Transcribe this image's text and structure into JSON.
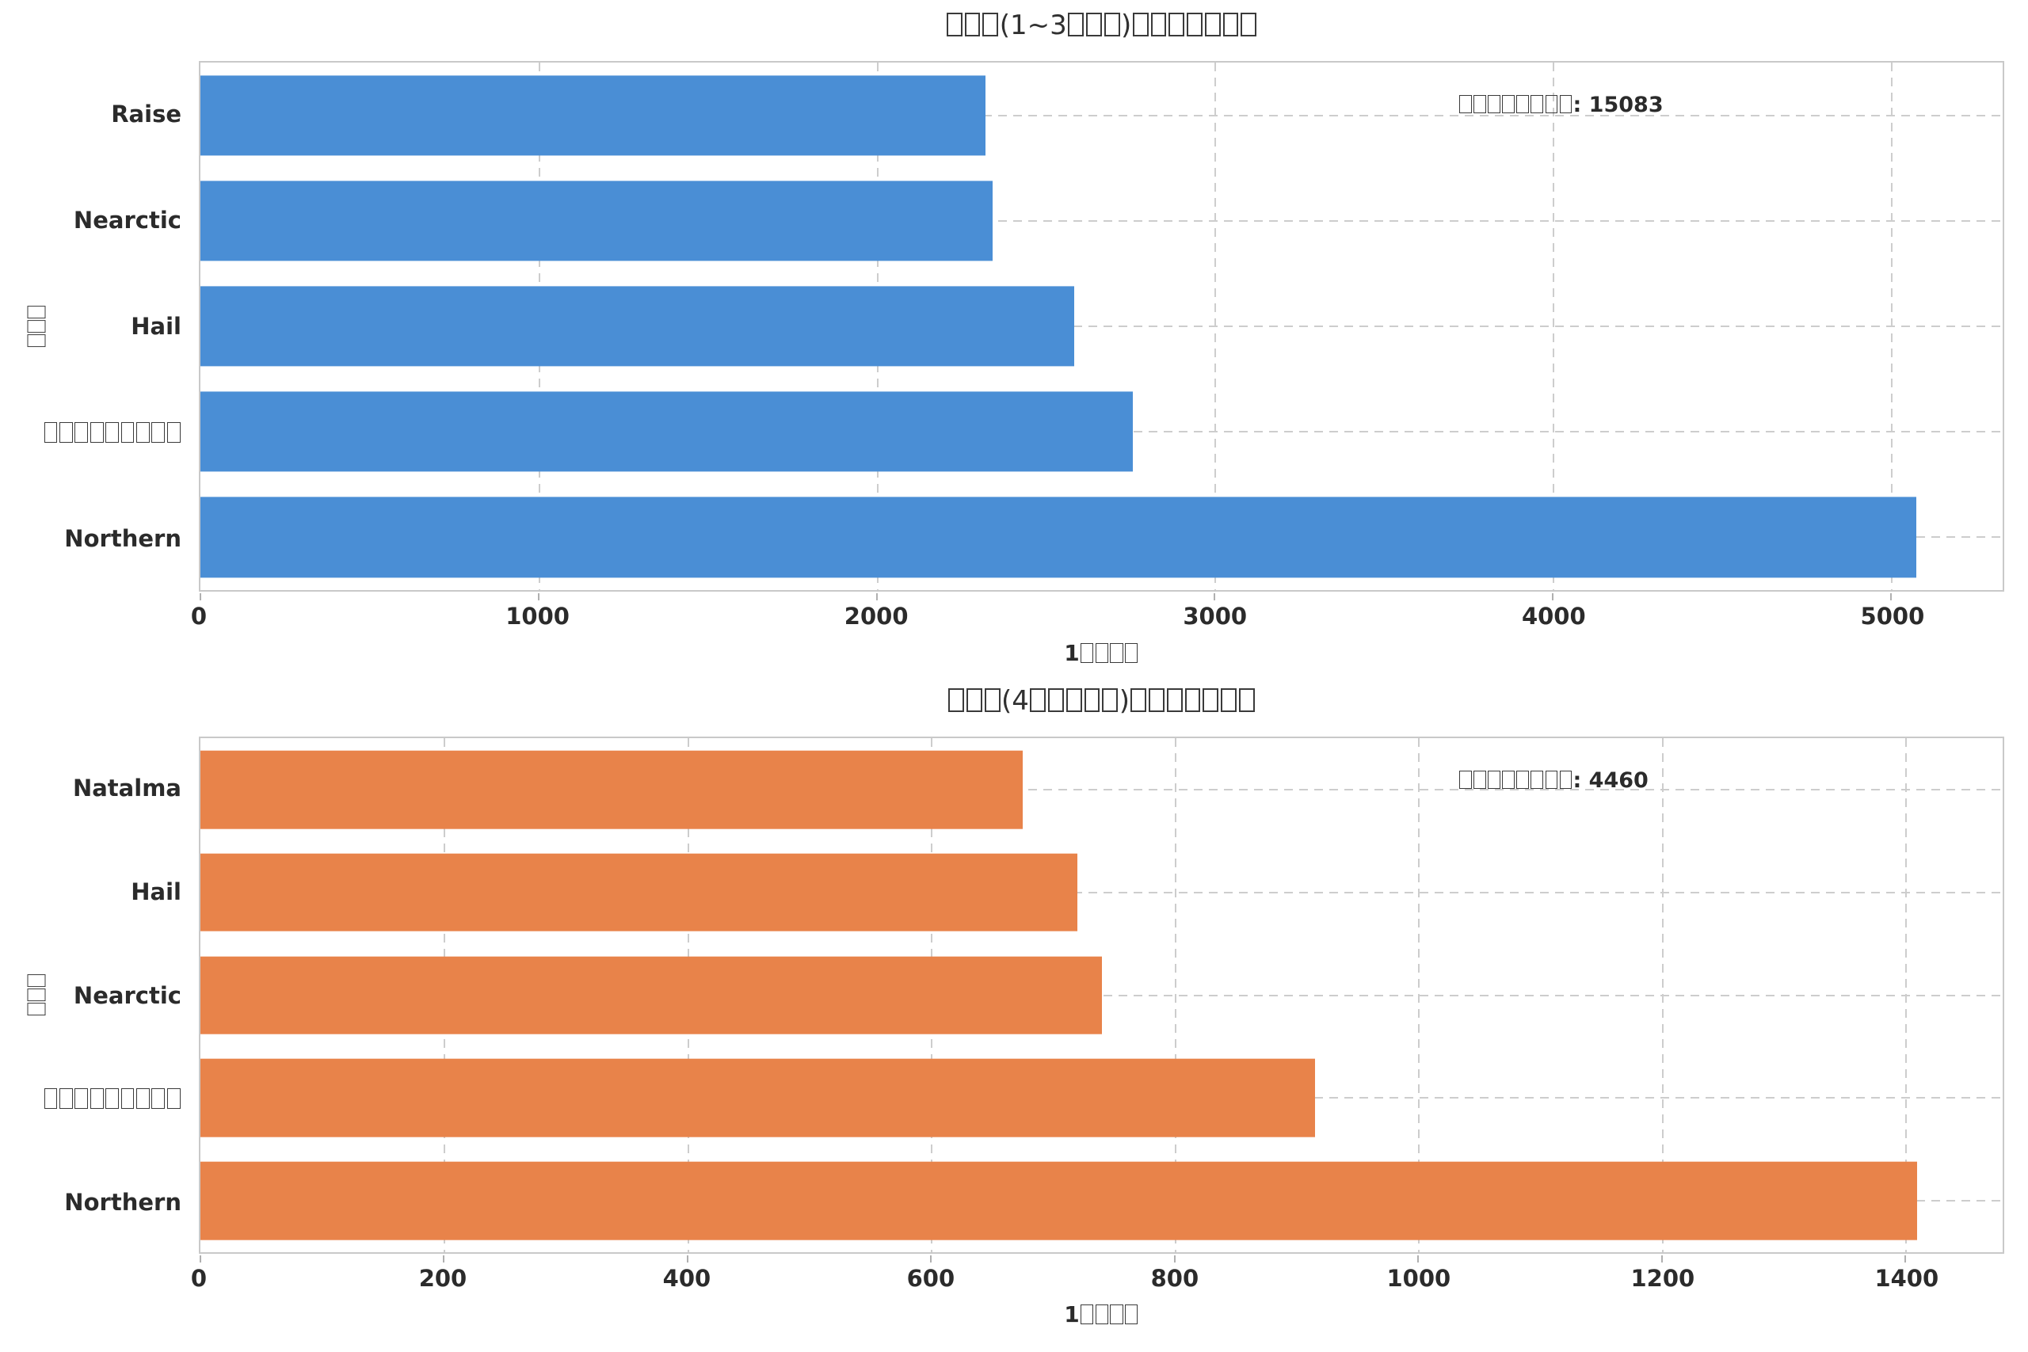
{
  "colors": {
    "background": "#ffffff",
    "bar_blue": "#4a8ed5",
    "bar_orange": "#e8834a",
    "grid": "#cdcdcd",
    "spine": "#c9c9c9",
    "text": "#2b2b2b"
  },
  "chart_data": [
    {
      "type": "bar",
      "orientation": "horizontal",
      "title": "□□□(1~3□□□)□□□□□□□",
      "xlabel": "1□□□□",
      "ylabel": "□□□",
      "annotation": "□□□□□□□□: 15083",
      "annotation_total": 15083,
      "categories": [
        "Raise",
        "Nearctic",
        "Hail",
        "□□□□□□□□□",
        "Northern"
      ],
      "values": [
        2322,
        2343,
        2585,
        2758,
        5075
      ],
      "bar_color": "#4a8ed5",
      "xlim": [
        0,
        5330
      ],
      "xticks": [
        0,
        1000,
        2000,
        3000,
        4000,
        5000
      ],
      "grid": true,
      "legend": false
    },
    {
      "type": "bar",
      "orientation": "horizontal",
      "title": "□□□(4□□□□□)□□□□□□□",
      "xlabel": "1□□□□",
      "ylabel": "□□□",
      "annotation": "□□□□□□□□: 4460",
      "annotation_total": 4460,
      "categories": [
        "Natalma",
        "Hail",
        "Nearctic",
        "□□□□□□□□□",
        "Northern"
      ],
      "values": [
        675,
        720,
        740,
        915,
        1410
      ],
      "bar_color": "#e8834a",
      "xlim": [
        0,
        1480
      ],
      "xticks": [
        0,
        200,
        400,
        600,
        800,
        1000,
        1200,
        1400
      ],
      "grid": true,
      "legend": false
    }
  ]
}
